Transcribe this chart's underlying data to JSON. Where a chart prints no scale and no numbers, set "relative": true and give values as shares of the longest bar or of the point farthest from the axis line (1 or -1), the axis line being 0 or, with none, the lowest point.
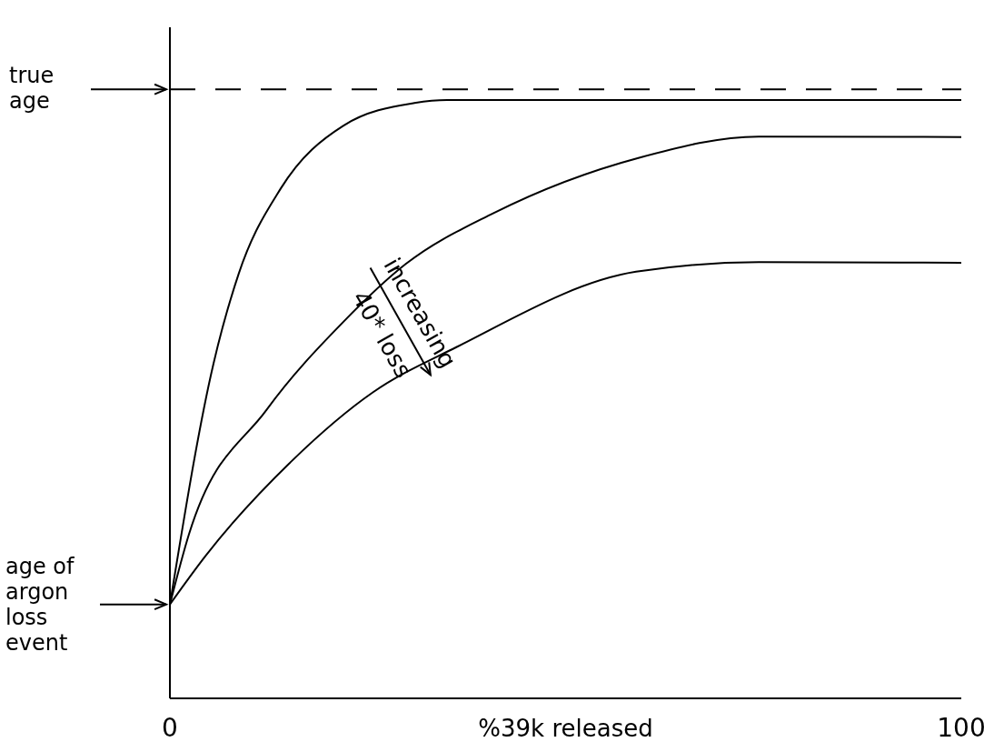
{
  "chart_data": {
    "type": "line",
    "relative": true,
    "xlabel": "%39k released",
    "xlim": [
      0,
      100
    ],
    "xticks": [
      0,
      100
    ],
    "series": [
      {
        "color": "#000000",
        "x": [
          0,
          5.5,
          8.7,
          14.0,
          21.9,
          30.9,
          35.0,
          100
        ],
        "values": [
          0.157,
          0.559,
          0.71,
          0.852,
          0.957,
          0.995,
          1.0,
          1.0
        ]
      },
      {
        "color": "#000000",
        "x": [
          0,
          2.4,
          12.2,
          21.9,
          29.8,
          40.9,
          59.4,
          74.4,
          100
        ],
        "values": [
          0.157,
          0.274,
          0.482,
          0.629,
          0.726,
          0.811,
          0.904,
          0.939,
          0.938
        ]
      },
      {
        "color": "#000000",
        "x": [
          0,
          4.5,
          15.5,
          25.6,
          36.2,
          58.9,
          74.4,
          100
        ],
        "values": [
          0.157,
          0.238,
          0.398,
          0.511,
          0.587,
          0.713,
          0.729,
          0.728
        ]
      }
    ],
    "ref_lines": [
      {
        "axis": "y",
        "value": 1.018,
        "label": "true age",
        "color": "#000000",
        "line_style": "dashed"
      }
    ],
    "annotations": [
      "age of argon loss event",
      "increasing",
      "40* loss"
    ]
  }
}
